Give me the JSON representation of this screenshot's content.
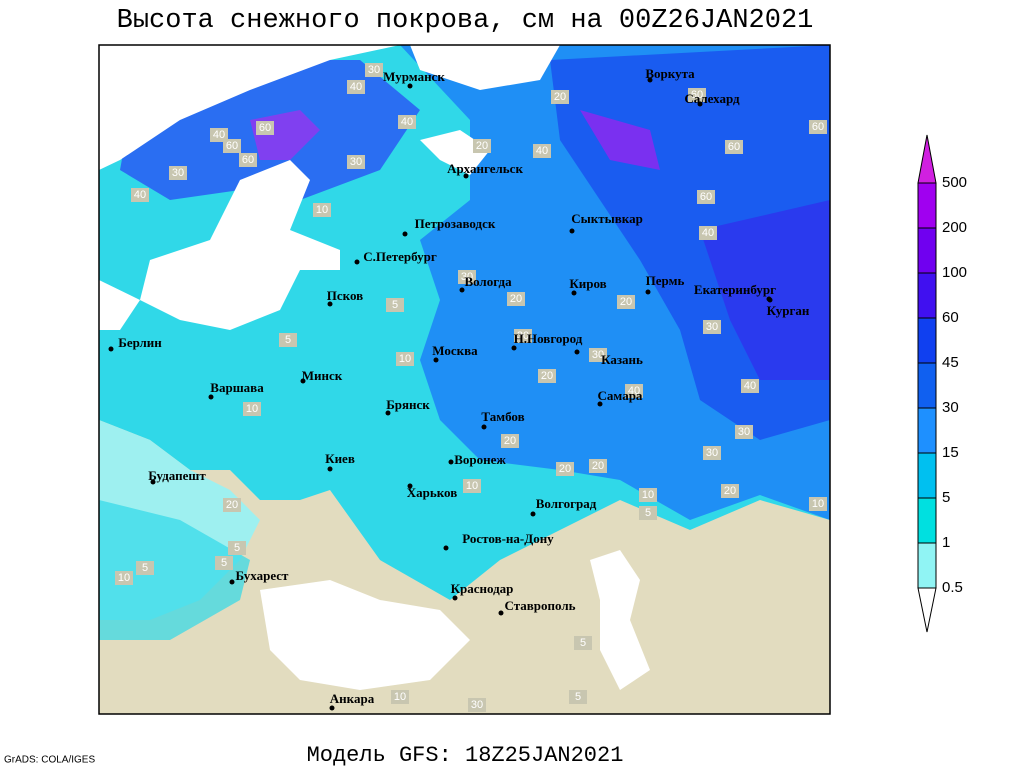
{
  "header": {
    "title": "Высота снежного покрова, см на 00Z26JAN2021"
  },
  "map": {
    "cities": [
      {
        "label": "Мурманск"
      },
      {
        "label": "Воркута"
      },
      {
        "label": "Салехард"
      },
      {
        "label": "Архангельск"
      },
      {
        "label": "Петрозаводск"
      },
      {
        "label": "Сыктывкар"
      },
      {
        "label": "С.Петербург"
      },
      {
        "label": "Вологда"
      },
      {
        "label": "Киров"
      },
      {
        "label": "Пермь"
      },
      {
        "label": "Екатеринбург"
      },
      {
        "label": "Курган"
      },
      {
        "label": "Псков"
      },
      {
        "label": "Н.Новгород"
      },
      {
        "label": "Казань"
      },
      {
        "label": "Берлин"
      },
      {
        "label": "Москва"
      },
      {
        "label": "Минск"
      },
      {
        "label": "Варшава"
      },
      {
        "label": "Самара"
      },
      {
        "label": "Брянск"
      },
      {
        "label": "Тамбов"
      },
      {
        "label": "Киев"
      },
      {
        "label": "Воронеж"
      },
      {
        "label": "Будапешт"
      },
      {
        "label": "Харьков"
      },
      {
        "label": "Волгоград"
      },
      {
        "label": "Ростов-на-Дону"
      },
      {
        "label": "Бухарест"
      },
      {
        "label": "Краснодар"
      },
      {
        "label": "Ставрополь"
      },
      {
        "label": "Анкара"
      }
    ],
    "contour_labels": [
      30,
      40,
      40,
      60,
      40,
      60,
      60,
      30,
      40,
      30,
      20,
      40,
      60,
      60,
      60,
      60,
      40,
      30,
      20,
      20,
      30,
      30,
      30,
      10,
      20,
      40,
      40,
      10,
      30,
      20,
      30,
      20,
      20,
      10,
      10,
      5,
      20,
      10,
      20,
      5,
      5,
      5,
      10,
      5,
      10,
      5,
      20,
      10,
      30,
      5,
      5
    ]
  },
  "colorbar": {
    "labels": [
      500,
      200,
      100,
      60,
      45,
      30,
      15,
      5,
      1,
      0.5
    ]
  },
  "footer": {
    "model": "Модель GFS: 18Z25JAN2021",
    "credit": "GrADS: COLA/IGES"
  }
}
